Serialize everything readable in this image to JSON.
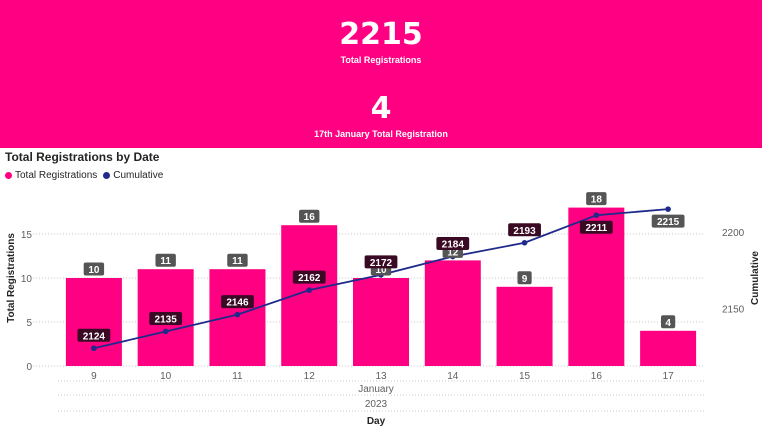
{
  "kpis": {
    "total_value": "2215",
    "total_label": "Total Registrations",
    "day_value": "4",
    "day_label": "17th January Total Registration"
  },
  "colors": {
    "header_bg": "#ff0082",
    "bar": "#ff0082",
    "line": "#1f2a8a",
    "label_bg": "#555555",
    "label_bg_line": "#3a0a24"
  },
  "chart_data": {
    "type": "bar+line",
    "title": "Total Registrations by Date",
    "legend": [
      "Total Registrations",
      "Cumulative"
    ],
    "legend_position": "top-left",
    "categories": [
      "9",
      "10",
      "11",
      "12",
      "13",
      "14",
      "15",
      "16",
      "17"
    ],
    "x_group_labels": [
      "January",
      "2023"
    ],
    "xlabel": "Day",
    "series": [
      {
        "name": "Total Registrations",
        "type": "bar",
        "axis": "left",
        "values": [
          10,
          11,
          11,
          16,
          10,
          12,
          9,
          18,
          4
        ]
      },
      {
        "name": "Cumulative",
        "type": "line",
        "axis": "right",
        "values": [
          2124,
          2135,
          2146,
          2162,
          2172,
          2184,
          2193,
          2211,
          2215
        ]
      }
    ],
    "ylabel_left": "Total Registrations",
    "ylim_left": [
      0,
      20
    ],
    "yticks_left": [
      "0",
      "5",
      "10",
      "15"
    ],
    "ylabel_right": "Cumulative",
    "ylim_right": [
      2112.4,
      2227.5
    ],
    "yticks_right": [
      "2150",
      "2200"
    ],
    "grid": "horizontal dotted"
  }
}
